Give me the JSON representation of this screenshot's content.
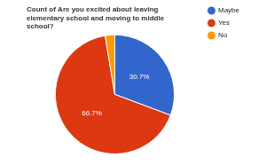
{
  "chart_data": {
    "type": "pie",
    "title": "Count of Are you excited about leaving elementary school and moving to middle school?",
    "categories": [
      "Maybe",
      "Yes",
      "No"
    ],
    "values": [
      30.7,
      66.7,
      2.6
    ],
    "value_labels": [
      "30.7%",
      "66.7%",
      null
    ],
    "colors": [
      "#3366cc",
      "#dc3912",
      "#ff9900"
    ],
    "legend": "right",
    "data_labels": true
  }
}
